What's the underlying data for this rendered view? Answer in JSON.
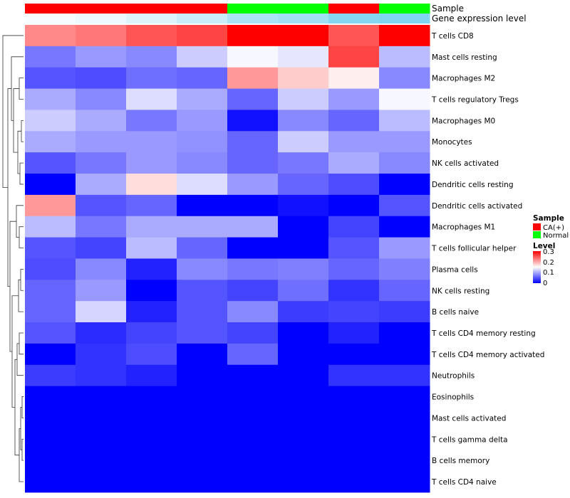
{
  "chart_data": {
    "type": "heatmap",
    "title": "",
    "annotation_tracks": [
      {
        "name": "Sample",
        "values": [
          "CA(+)",
          "CA(+)",
          "CA(+)",
          "CA(+)",
          "Normal",
          "Normal",
          "CA(+)",
          "Normal"
        ]
      },
      {
        "name": "Gene expression level",
        "values": [
          0.05,
          0.12,
          0.22,
          0.35,
          0.55,
          0.62,
          0.8,
          0.82
        ]
      }
    ],
    "rows": [
      "T cells CD8",
      "Mast cells resting",
      "Macrophages M2",
      "T cells regulatory  Tregs",
      "Macrophages M0",
      "Monocytes",
      "NK cells activated",
      "Dendritic cells resting",
      "Dendritic cells activated",
      "Macrophages M1",
      "T cells follicular helper",
      "Plasma cells",
      "NK cells resting",
      "B cells naive",
      "T cells CD4 memory resting",
      "T cells CD4 memory activated",
      "Neutrophils",
      "Eosinophils",
      "Mast cells activated",
      "T cells gamma delta",
      "B cells memory",
      "T cells CD4 naive"
    ],
    "values": [
      [
        0.22,
        0.23,
        0.25,
        0.26,
        0.3,
        0.3,
        0.25,
        0.3
      ],
      [
        0.07,
        0.09,
        0.08,
        0.12,
        0.145,
        0.135,
        0.26,
        0.11
      ],
      [
        0.05,
        0.045,
        0.065,
        0.06,
        0.21,
        0.18,
        0.16,
        0.08
      ],
      [
        0.1,
        0.08,
        0.13,
        0.1,
        0.06,
        0.12,
        0.09,
        0.145
      ],
      [
        0.12,
        0.1,
        0.07,
        0.09,
        0.01,
        0.08,
        0.06,
        0.11
      ],
      [
        0.1,
        0.09,
        0.09,
        0.085,
        0.06,
        0.12,
        0.09,
        0.09
      ],
      [
        0.05,
        0.07,
        0.09,
        0.08,
        0.06,
        0.07,
        0.1,
        0.08
      ],
      [
        0.0,
        0.1,
        0.17,
        0.13,
        0.09,
        0.06,
        0.045,
        0.0
      ],
      [
        0.21,
        0.05,
        0.06,
        0.0,
        0.0,
        0.01,
        0.0,
        0.05
      ],
      [
        0.11,
        0.07,
        0.1,
        0.1,
        0.1,
        0.0,
        0.04,
        0.0
      ],
      [
        0.05,
        0.04,
        0.11,
        0.06,
        0.0,
        0.0,
        0.05,
        0.09
      ],
      [
        0.045,
        0.08,
        0.02,
        0.08,
        0.07,
        0.075,
        0.06,
        0.075
      ],
      [
        0.06,
        0.09,
        0.0,
        0.05,
        0.04,
        0.065,
        0.03,
        0.06
      ],
      [
        0.06,
        0.125,
        0.02,
        0.05,
        0.08,
        0.035,
        0.04,
        0.035
      ],
      [
        0.05,
        0.025,
        0.04,
        0.05,
        0.04,
        0.0,
        0.02,
        0.0
      ],
      [
        0.0,
        0.03,
        0.045,
        0.0,
        0.06,
        0.0,
        0.0,
        0.0
      ],
      [
        0.035,
        0.03,
        0.02,
        0.0,
        0.0,
        0.0,
        0.03,
        0.03
      ],
      [
        0.0,
        0.0,
        0.0,
        0.0,
        0.0,
        0.0,
        0.0,
        0.0
      ],
      [
        0.0,
        0.0,
        0.0,
        0.0,
        0.0,
        0.0,
        0.0,
        0.0
      ],
      [
        0.0,
        0.0,
        0.0,
        0.0,
        0.0,
        0.0,
        0.0,
        0.0
      ],
      [
        0.0,
        0.0,
        0.0,
        0.0,
        0.0,
        0.0,
        0.0,
        0.0
      ],
      [
        0.0,
        0.0,
        0.0,
        0.0,
        0.0,
        0.0,
        0.0,
        0.0
      ]
    ],
    "color_scale": {
      "name": "Level",
      "min": 0,
      "max": 0.3,
      "stops": [
        "#0000ff",
        "#ffffff",
        "#ff0000"
      ],
      "ticks": [
        "0.3",
        "0.2",
        "0.1",
        "0"
      ]
    },
    "sample_legend": {
      "title": "Sample",
      "items": [
        {
          "label": "CA(+)",
          "color": "#ff0000"
        },
        {
          "label": "Normal",
          "color": "#00ff00"
        }
      ]
    },
    "expression_scale": {
      "low": "#ffffff",
      "high": "#66ccee"
    },
    "row_dendrogram": true,
    "legend_position": "right"
  }
}
